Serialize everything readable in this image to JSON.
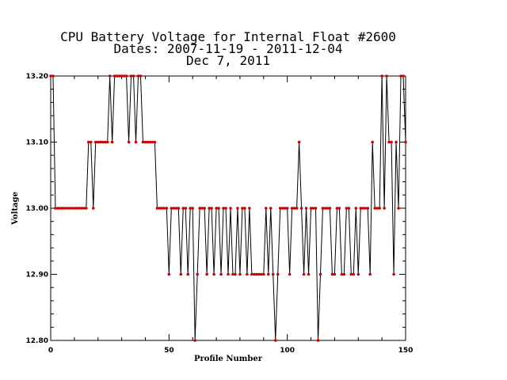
{
  "chart_data": {
    "type": "line",
    "title_lines": [
      "CPU Battery Voltage for Internal Float #2600",
      "Dates:  2007-11-19 -  2011-12-04",
      "Dec  7, 2011"
    ],
    "xlabel": "Profile Number",
    "ylabel": "Voltage",
    "xlim": [
      0,
      150
    ],
    "ylim": [
      12.8,
      13.2
    ],
    "x_ticks": [
      0,
      50,
      100,
      150
    ],
    "y_ticks": [
      12.8,
      12.9,
      13.0,
      13.1,
      13.2
    ],
    "y_tick_labels": [
      "12.80",
      "12.90",
      "13.00",
      "13.10",
      "13.20"
    ],
    "line_color": "#000000",
    "marker_color": "#cc0000",
    "grid": false,
    "series": [
      {
        "values": [
          13.2,
          13.2,
          13.0,
          13.0,
          13.0,
          13.0,
          13.0,
          13.0,
          13.0,
          13.0,
          13.0,
          13.0,
          13.0,
          13.0,
          13.0,
          13.0,
          13.1,
          13.1,
          13.0,
          13.1,
          13.1,
          13.1,
          13.1,
          13.1,
          13.1,
          13.2,
          13.1,
          13.2,
          13.2,
          13.2,
          13.2,
          13.2,
          13.2,
          13.1,
          13.2,
          13.2,
          13.1,
          13.2,
          13.2,
          13.1,
          13.1,
          13.1,
          13.1,
          13.1,
          13.1,
          13.0,
          13.0,
          13.0,
          13.0,
          13.0,
          12.9,
          13.0,
          13.0,
          13.0,
          13.0,
          12.9,
          13.0,
          13.0,
          12.9,
          13.0,
          13.0,
          12.8,
          12.9,
          13.0,
          13.0,
          13.0,
          12.9,
          13.0,
          13.0,
          12.9,
          13.0,
          13.0,
          12.9,
          13.0,
          13.0,
          12.9,
          13.0,
          12.9,
          12.9,
          13.0,
          12.9,
          13.0,
          13.0,
          12.9,
          13.0,
          12.9,
          12.9,
          12.9,
          12.9,
          12.9,
          12.9,
          13.0,
          12.9,
          13.0,
          12.9,
          12.8,
          12.9,
          13.0,
          13.0,
          13.0,
          13.0,
          12.9,
          13.0,
          13.0,
          13.0,
          13.1,
          13.0,
          12.9,
          13.0,
          12.9,
          13.0,
          13.0,
          13.0,
          12.8,
          12.9,
          13.0,
          13.0,
          13.0,
          13.0,
          12.9,
          12.9,
          13.0,
          13.0,
          12.9,
          12.9,
          13.0,
          13.0,
          12.9,
          12.9,
          13.0,
          12.9,
          13.0,
          13.0,
          13.0,
          13.0,
          12.9,
          13.1,
          13.0,
          13.0,
          13.0,
          13.2,
          13.0,
          13.2,
          13.1,
          13.1,
          12.9,
          13.1,
          13.0,
          13.2,
          13.2,
          13.1
        ]
      }
    ]
  }
}
